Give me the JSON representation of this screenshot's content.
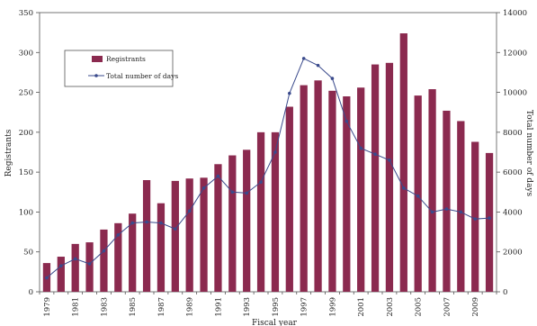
{
  "chart_data": {
    "type": "bar+line",
    "title": "",
    "xlabel": "Fiscal year",
    "ylabel_left": "Registrants",
    "ylabel_right": "Total number of days",
    "ylim_left": [
      0,
      350
    ],
    "ylim_right": [
      0,
      14000
    ],
    "yticks_left": [
      0,
      50,
      100,
      150,
      200,
      250,
      300,
      350
    ],
    "yticks_right": [
      0,
      2000,
      4000,
      6000,
      8000,
      10000,
      12000,
      14000
    ],
    "categories": [
      "1979",
      "1980",
      "1981",
      "1982",
      "1983",
      "1984",
      "1985",
      "1986",
      "1987",
      "1988",
      "1989",
      "1990",
      "1991",
      "1992",
      "1993",
      "1994",
      "1995",
      "1996",
      "1997",
      "1998",
      "1999",
      "2000",
      "2001",
      "2002",
      "2003",
      "2004",
      "2005",
      "2006",
      "2007",
      "2008",
      "2009",
      "2010"
    ],
    "x_tick_labels": [
      "1979",
      "1981",
      "1983",
      "1985",
      "1987",
      "1989",
      "1991",
      "1993",
      "1995",
      "1997",
      "1999",
      "2001",
      "2003",
      "2005",
      "2007",
      "2009"
    ],
    "grid": false,
    "legend_position": "top-left",
    "series": [
      {
        "name": "Registrants",
        "kind": "bar",
        "axis": "left",
        "color": "#8b2a4f",
        "values": [
          36,
          44,
          60,
          62,
          78,
          86,
          98,
          140,
          111,
          139,
          142,
          143,
          160,
          171,
          178,
          200,
          200,
          232,
          259,
          265,
          252,
          245,
          256,
          285,
          287,
          324,
          246,
          254,
          227,
          214,
          188,
          174
        ]
      },
      {
        "name": "Total number of days",
        "kind": "line",
        "axis": "right",
        "color": "#3a4a8c",
        "values": [
          700,
          1300,
          1650,
          1400,
          2050,
          2850,
          3450,
          3500,
          3450,
          3150,
          4050,
          5200,
          5800,
          5000,
          4950,
          5500,
          7000,
          9950,
          11700,
          11350,
          10700,
          8550,
          7200,
          6900,
          6600,
          5200,
          4800,
          4000,
          4150,
          4000,
          3650,
          3700
        ]
      }
    ]
  }
}
